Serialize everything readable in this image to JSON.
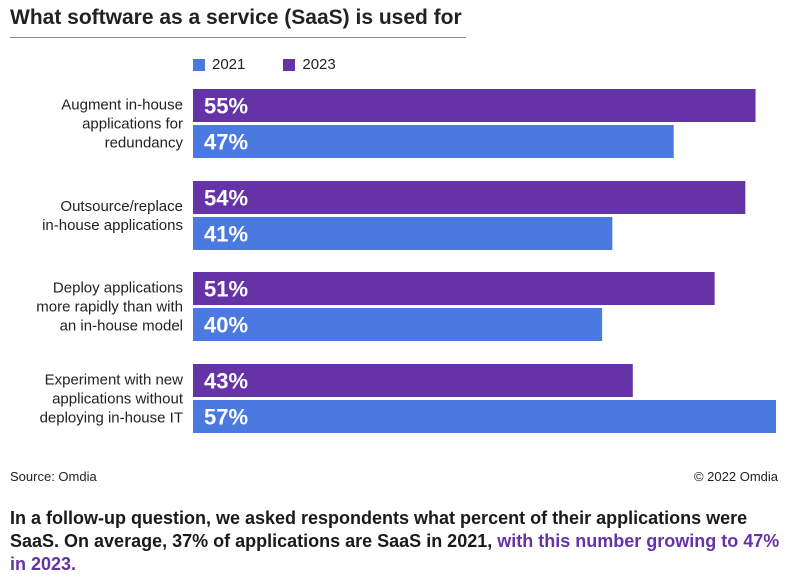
{
  "chart_data": {
    "type": "bar",
    "orientation": "horizontal",
    "title": "What software as a service (SaaS) is used for",
    "categories": [
      [
        "Augment in-house",
        "applications for",
        "redundancy"
      ],
      [
        "Outsource/replace",
        "in-house applications"
      ],
      [
        "Deploy applications",
        "more rapidly than with",
        "an in-house model"
      ],
      [
        "Experiment with new",
        "applications without",
        "deploying in-house IT"
      ]
    ],
    "series": [
      {
        "name": "2023",
        "color": "#6633a6",
        "values": [
          55,
          54,
          51,
          43
        ]
      },
      {
        "name": "2021",
        "color": "#4a7adf",
        "values": [
          47,
          41,
          40,
          57
        ]
      }
    ],
    "legend_order": [
      "2021",
      "2023"
    ],
    "legend_placement": "top",
    "value_format": "percent",
    "grid": false,
    "xlim": [
      0,
      57
    ]
  },
  "source": "Source: Omdia",
  "copyright": "© 2022 Omdia",
  "footnote": {
    "text_plain": "In a follow-up question, we asked respondents what percent of their applications were SaaS. On average, 37% of applications are SaaS in 2021, ",
    "text_highlight": "with this number growing to 47% in 2023."
  }
}
